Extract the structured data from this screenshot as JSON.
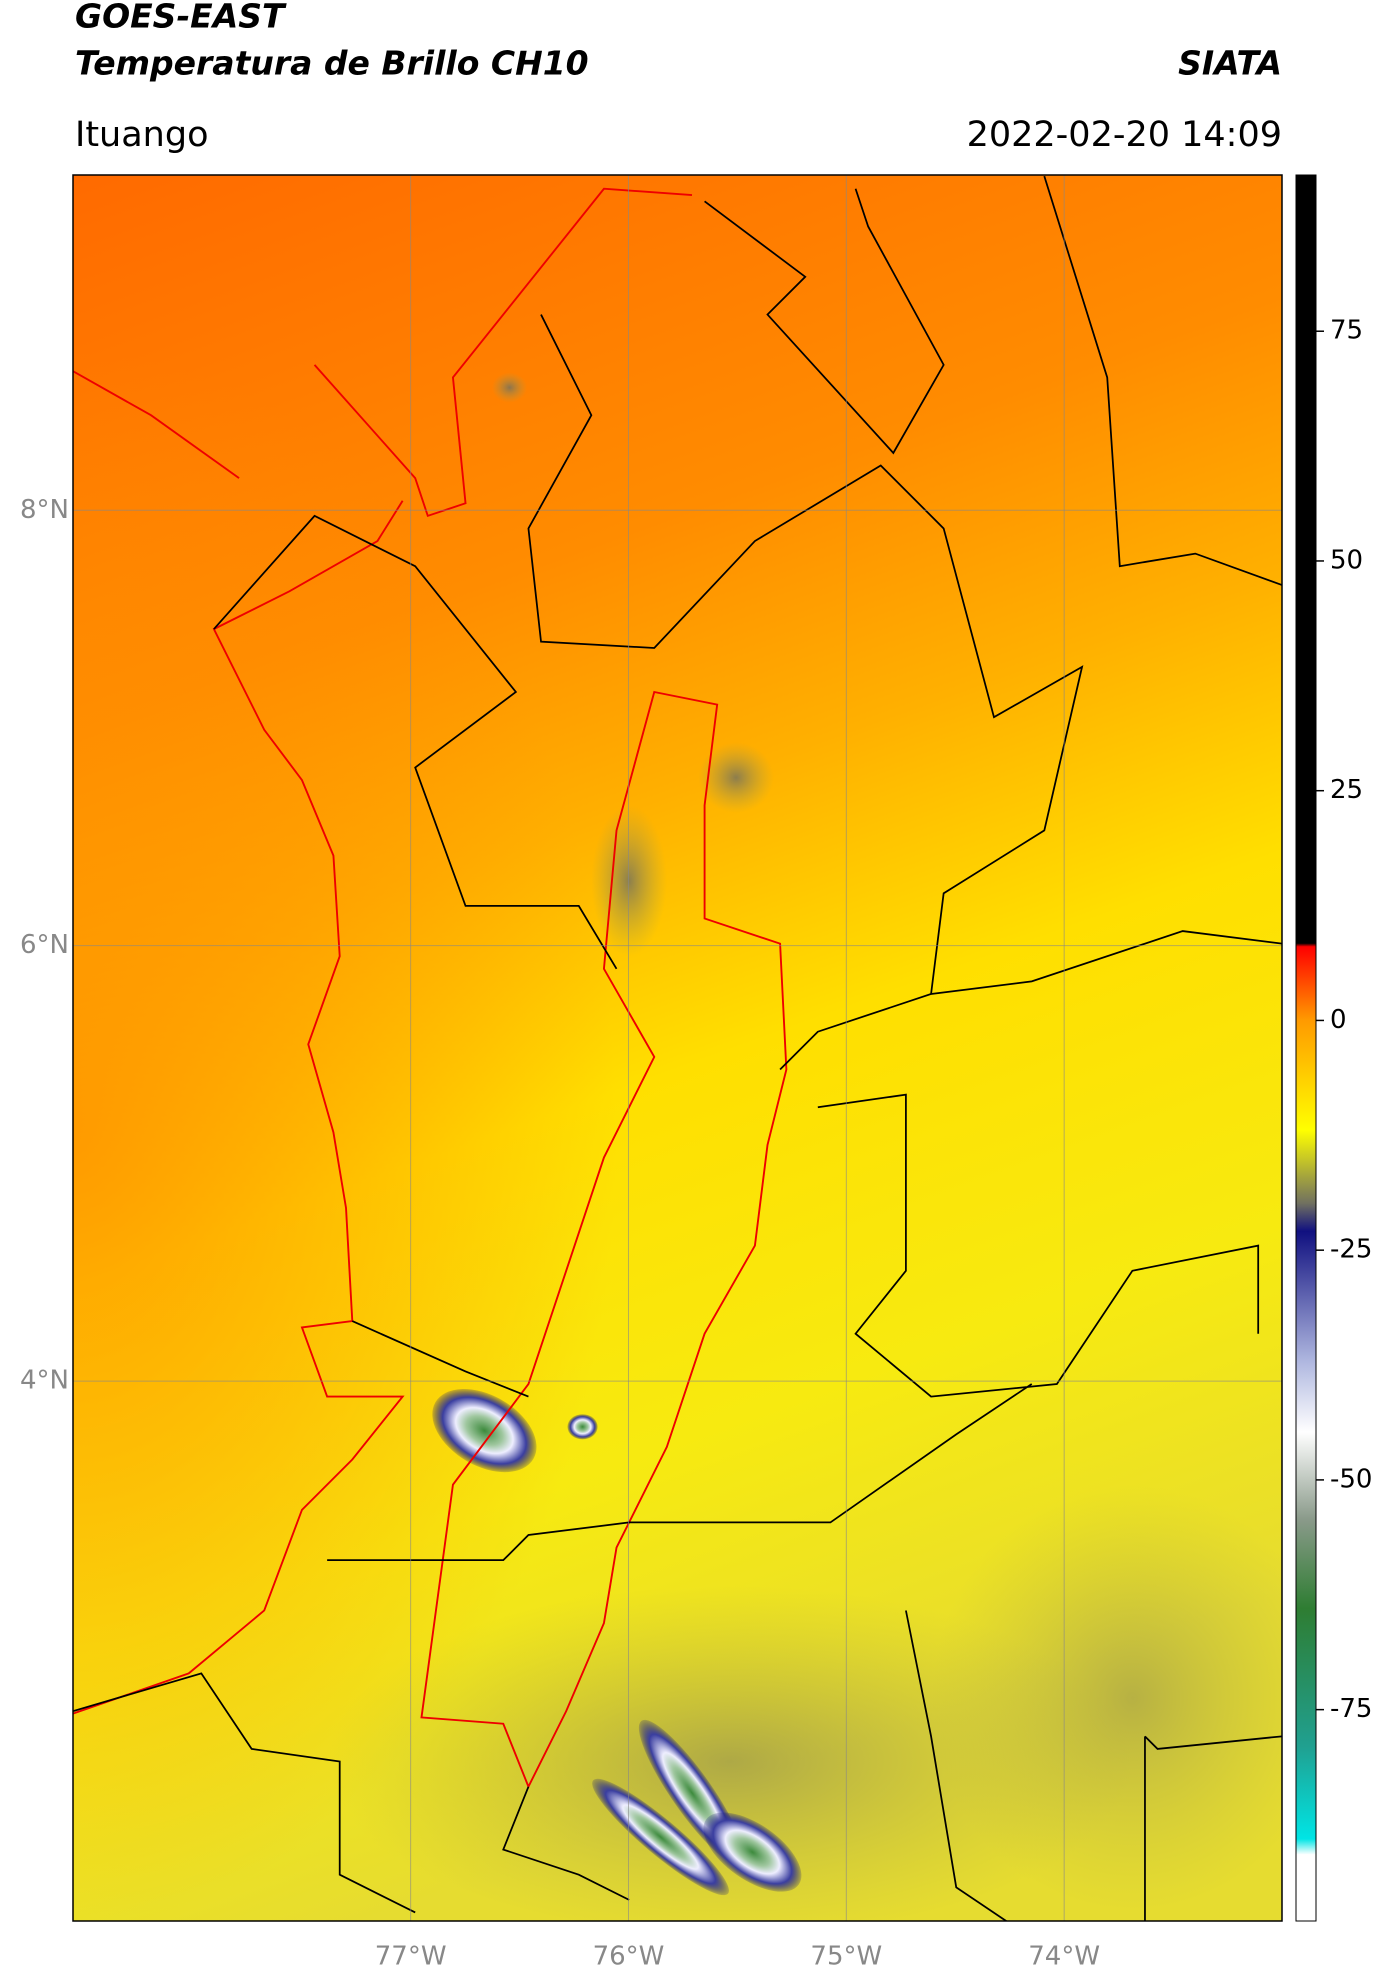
{
  "header": {
    "title": "GOES-EAST",
    "subtitle": "Temperatura de Brillo CH10",
    "brand": "SIATA",
    "region": "Ituango",
    "datetime": "2022-02-20 14:09"
  },
  "map": {
    "xlim": [
      -78.55,
      -73.0
    ],
    "ylim": [
      1.52,
      9.54
    ],
    "xticks": [
      {
        "value": -77,
        "label": "77°W"
      },
      {
        "value": -76,
        "label": "76°W"
      },
      {
        "value": -75,
        "label": "75°W"
      },
      {
        "value": -74,
        "label": "74°W"
      }
    ],
    "yticks": [
      {
        "value": 8,
        "label": "8°N"
      },
      {
        "value": 6,
        "label": "6°N"
      },
      {
        "value": 4,
        "label": "4°N"
      }
    ],
    "grid": true
  },
  "colorbar": {
    "lim": [
      -98,
      92
    ],
    "ticks": [
      75,
      50,
      25,
      0,
      -25,
      -50,
      -75
    ]
  }
}
